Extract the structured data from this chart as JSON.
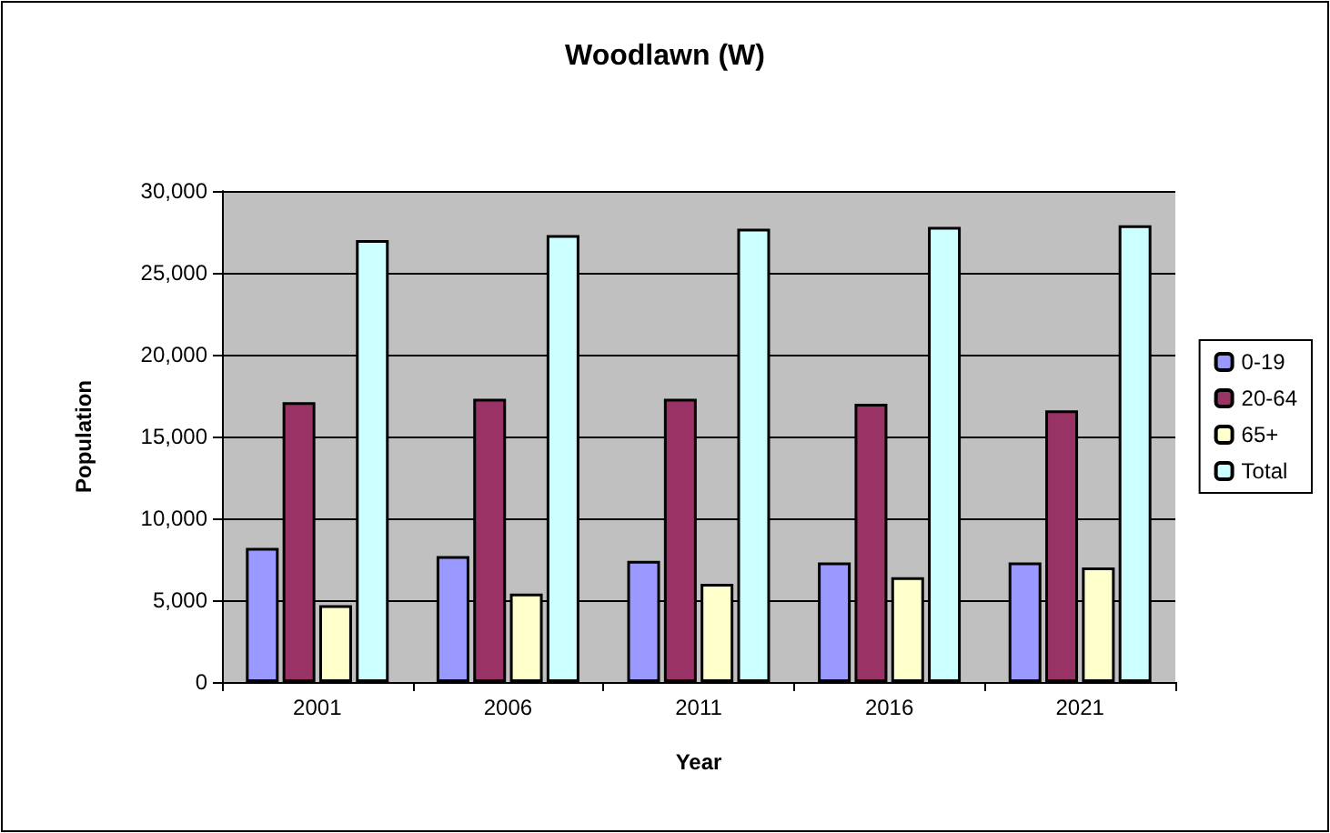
{
  "chart_data": {
    "type": "bar",
    "title": "Woodlawn (W)",
    "xlabel": "Year",
    "ylabel": "Population",
    "categories": [
      "2001",
      "2006",
      "2011",
      "2016",
      "2021"
    ],
    "series": [
      {
        "name": "0-19",
        "color": "#9999ff",
        "values": [
          8200,
          7700,
          7400,
          7300,
          7300
        ]
      },
      {
        "name": "20-64",
        "color": "#993366",
        "values": [
          17100,
          17300,
          17300,
          17000,
          16600
        ]
      },
      {
        "name": "65+",
        "color": "#ffffcc",
        "values": [
          4700,
          5400,
          6000,
          6400,
          7000
        ]
      },
      {
        "name": "Total",
        "color": "#ccffff",
        "values": [
          27000,
          27300,
          27700,
          27800,
          27900
        ]
      }
    ],
    "ylim": [
      0,
      30000
    ],
    "yticks": [
      0,
      {
        "value": 5000,
        "label": "5,000"
      },
      {
        "value": 10000,
        "label": "10,000"
      },
      {
        "value": 15000,
        "label": "15,000"
      },
      {
        "value": 20000,
        "label": "20,000"
      },
      {
        "value": 25000,
        "label": "25,000"
      },
      {
        "value": 30000,
        "label": "30,000"
      }
    ],
    "grid": "y",
    "legend": "right"
  }
}
